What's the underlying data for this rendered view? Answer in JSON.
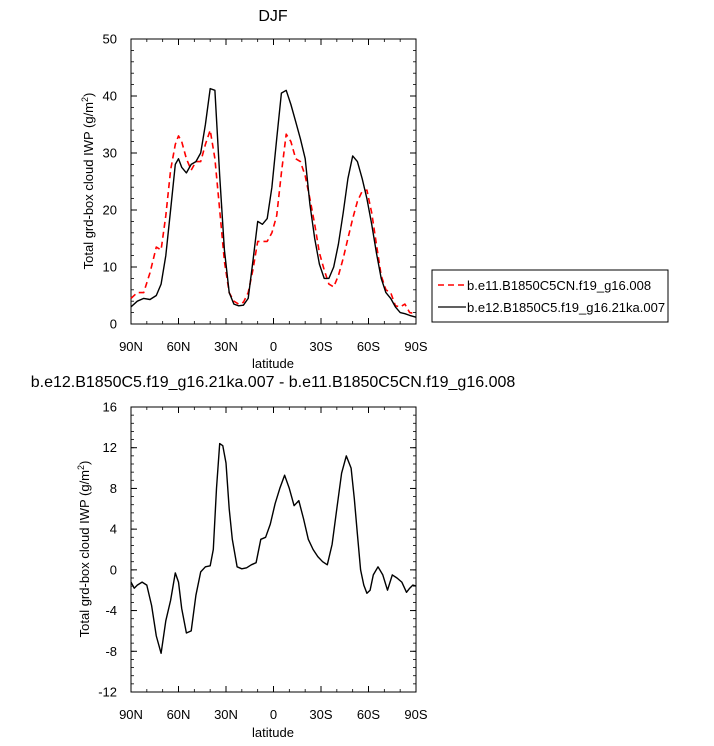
{
  "chart_data": [
    {
      "type": "line",
      "title": "DJF",
      "xlabel": "latitude",
      "ylabel": "Total grd-box cloud IWP (g/m",
      "ylabel_sup": "2",
      "ylabel_tail": ")",
      "xlim": [
        90,
        -90
      ],
      "ylim": [
        0,
        50
      ],
      "x_ticks": [
        90,
        60,
        30,
        0,
        -30,
        -60,
        -90
      ],
      "x_tick_labels": [
        "90N",
        "60N",
        "30N",
        "0",
        "30S",
        "60S",
        "90S"
      ],
      "y_ticks": [
        0,
        10,
        20,
        30,
        40,
        50
      ],
      "y_tick_labels": [
        "0",
        "10",
        "20",
        "30",
        "40",
        "50"
      ],
      "grid": false,
      "legend_position": "right",
      "series": [
        {
          "name": "b.e11.B1850C5CN.f19_g16.008",
          "color": "#ff0000",
          "dash": "dashed",
          "x": [
            90,
            86,
            82,
            78,
            74,
            71,
            68,
            65,
            62,
            60,
            58,
            55,
            52,
            49,
            46,
            43,
            40,
            37,
            34,
            31,
            28,
            25,
            22,
            19,
            16,
            13,
            10,
            7,
            4,
            1,
            -2,
            -5,
            -8,
            -11,
            -14,
            -17,
            -20,
            -23,
            -26,
            -29,
            -32,
            -35,
            -38,
            -41,
            -44,
            -47,
            -50,
            -53,
            -56,
            -59,
            -62,
            -65,
            -68,
            -71,
            -74,
            -77,
            -80,
            -83,
            -86,
            -90
          ],
          "y": [
            4.5,
            5.5,
            5.5,
            9,
            13.5,
            13,
            19,
            27,
            31.5,
            33,
            32,
            29,
            27,
            28.5,
            28.5,
            31.5,
            34,
            29,
            20,
            11,
            5.5,
            4,
            3.5,
            3.8,
            5.5,
            9.5,
            14.5,
            14.5,
            14.5,
            16,
            19,
            26.5,
            33.3,
            32,
            29,
            28.5,
            26,
            22,
            17.5,
            12.5,
            9.5,
            7,
            6.5,
            8.5,
            11.5,
            15,
            18.5,
            21.5,
            23.3,
            23.5,
            19.5,
            14,
            8.5,
            6,
            5.5,
            3.2,
            3,
            3.5,
            2,
            1.8
          ]
        },
        {
          "name": "b.e12.B1850C5.f19_g16.21ka.007",
          "color": "#000000",
          "dash": "solid",
          "x": [
            90,
            86,
            82,
            78,
            74,
            71,
            68,
            65,
            62,
            60,
            58,
            55,
            52,
            49,
            46,
            43,
            40,
            37,
            34,
            31,
            28,
            25,
            22,
            19,
            16,
            13,
            10,
            7,
            4,
            1,
            -2,
            -5,
            -8,
            -11,
            -14,
            -17,
            -20,
            -23,
            -26,
            -29,
            -32,
            -35,
            -38,
            -41,
            -44,
            -47,
            -50,
            -53,
            -56,
            -59,
            -62,
            -65,
            -68,
            -71,
            -74,
            -77,
            -80,
            -83,
            -86,
            -90
          ],
          "y": [
            3,
            4,
            4.5,
            4.3,
            5,
            7,
            12,
            20,
            28,
            29,
            27.5,
            26.5,
            28,
            28.5,
            30,
            35,
            41.3,
            41,
            26,
            13,
            5.5,
            3.5,
            3.2,
            3.3,
            4.5,
            11,
            18,
            17.5,
            18.5,
            24,
            32.5,
            40.5,
            41,
            38.5,
            35.5,
            32.5,
            29,
            21,
            15,
            10.5,
            8,
            8,
            10,
            14,
            19.5,
            25.5,
            29.5,
            28.5,
            25.5,
            22,
            17.5,
            12.5,
            8,
            5.5,
            4.5,
            3,
            2,
            1.8,
            1.5,
            1.2
          ]
        }
      ]
    },
    {
      "type": "line",
      "title": "b.e12.B1850C5.f19_g16.21ka.007 - b.e11.B1850C5CN.f19_g16.008",
      "xlabel": "latitude",
      "ylabel": "Total grd-box cloud IWP (g/m",
      "ylabel_sup": "2",
      "ylabel_tail": ")",
      "xlim": [
        90,
        -90
      ],
      "ylim": [
        -12,
        16
      ],
      "x_ticks": [
        90,
        60,
        30,
        0,
        -30,
        -60,
        -90
      ],
      "x_tick_labels": [
        "90N",
        "60N",
        "30N",
        "0",
        "30S",
        "60S",
        "90S"
      ],
      "y_ticks": [
        -12,
        -8,
        -4,
        0,
        4,
        8,
        12,
        16
      ],
      "y_tick_labels": [
        "-12",
        "-8",
        "-4",
        "0",
        "4",
        "8",
        "12",
        "16"
      ],
      "grid": false,
      "series": [
        {
          "color": "#000000",
          "dash": "solid",
          "x": [
            90,
            88,
            86,
            83,
            80,
            77,
            74,
            71,
            68,
            65,
            62,
            60,
            58,
            55,
            52,
            49,
            46,
            43,
            40,
            38,
            36,
            34,
            32,
            30,
            28,
            26,
            23,
            20,
            17,
            14,
            11,
            8,
            5,
            2,
            -1,
            -4,
            -7,
            -10,
            -13,
            -16,
            -19,
            -22,
            -25,
            -28,
            -31,
            -34,
            -37,
            -40,
            -43,
            -46,
            -49,
            -51,
            -53,
            -55,
            -57,
            -59,
            -61,
            -63,
            -66,
            -69,
            -72,
            -75,
            -78,
            -81,
            -84,
            -86,
            -88,
            -90
          ],
          "y": [
            -1.2,
            -1.8,
            -1.5,
            -1.2,
            -1.5,
            -3.5,
            -6.5,
            -8.2,
            -5,
            -3,
            -0.3,
            -1.2,
            -3.8,
            -6.2,
            -6,
            -2.5,
            -0.2,
            0.3,
            0.4,
            2,
            8,
            12.4,
            12.2,
            10.5,
            6,
            3,
            0.3,
            0.1,
            0.2,
            0.5,
            0.7,
            3,
            3.2,
            4.5,
            6.5,
            8,
            9.3,
            8,
            6.3,
            6.8,
            5,
            3,
            2,
            1.3,
            0.8,
            0.5,
            2.5,
            6,
            9.5,
            11.2,
            10,
            7,
            3.5,
            0,
            -1.5,
            -2.3,
            -2,
            -0.5,
            0.3,
            -0.5,
            -2,
            -0.5,
            -0.8,
            -1.2,
            -2.2,
            -1.8,
            -1.5,
            -1.6
          ]
        }
      ]
    }
  ]
}
